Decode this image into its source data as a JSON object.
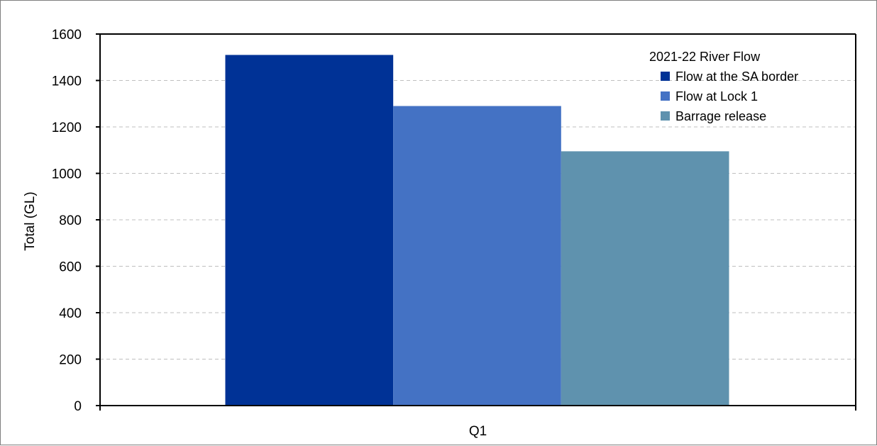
{
  "chart_data": {
    "type": "bar",
    "title": "",
    "xlabel": "",
    "ylabel": "Total (GL)",
    "ylim": [
      0,
      1600
    ],
    "yticks": [
      0,
      200,
      400,
      600,
      800,
      1000,
      1200,
      1400,
      1600
    ],
    "grid": true,
    "categories": [
      "Q1"
    ],
    "legend": {
      "title": "2021-22 River Flow",
      "placement": "top-right"
    },
    "series": [
      {
        "name": "Flow at the SA border",
        "values": [
          1510
        ],
        "color": "#003296"
      },
      {
        "name": "Flow at Lock 1",
        "values": [
          1290
        ],
        "color": "#4472c4"
      },
      {
        "name": "Barrage release",
        "values": [
          1095
        ],
        "color": "#5f92ae"
      }
    ]
  }
}
